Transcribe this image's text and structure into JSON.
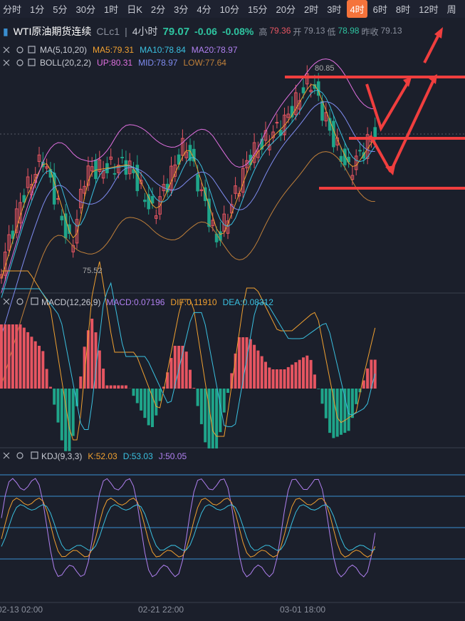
{
  "toolbar": {
    "intervals": [
      "分时",
      "1分",
      "5分",
      "30分",
      "1时",
      "日K",
      "2分",
      "3分",
      "4分",
      "10分",
      "15分",
      "20分",
      "2时",
      "3时",
      "4时",
      "6时",
      "8时",
      "12时",
      "周"
    ],
    "active": "4时"
  },
  "header": {
    "symbol": "WTI原油期货连续",
    "code": "CLc1",
    "period": "4小时",
    "price": "79.07",
    "change": "-0.06",
    "change_pct": "-0.08%",
    "high_label": "高",
    "high": "79.36",
    "open_label": "开",
    "open": "79.13",
    "low_label": "低",
    "low": "78.98",
    "prev_close_label": "昨收",
    "prev_close": "79.13"
  },
  "main_panel": {
    "ma": {
      "name": "MA(5,10,20)",
      "ma5": "MA5:79.31",
      "ma10": "MA10:78.84",
      "ma20": "MA20:78.97"
    },
    "boll": {
      "name": "BOLL(20,2,2)",
      "up": "UP:80.31",
      "mid": "MID:78.97",
      "low": "LOW:77.64"
    },
    "max_label": "80.85",
    "min_label": "75.52"
  },
  "macd_panel": {
    "name": "MACD(12,26,9)",
    "macd": "MACD:0.07196",
    "dif": "DIF:0.11910",
    "dea": "DEA:0.08312"
  },
  "kdj_panel": {
    "name": "KDJ(9,3,3)",
    "k": "K:52.03",
    "d": "D:53.03",
    "j": "J:50.05"
  },
  "time_axis": [
    "02-13 02:00",
    "02-21 22:00",
    "03-01 18:00"
  ]
}
